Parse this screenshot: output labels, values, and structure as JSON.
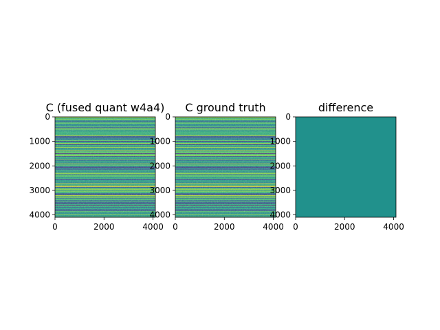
{
  "chart_data": [
    {
      "type": "heatmap",
      "title": "C (fused quant w4a4)",
      "xlim": [
        0,
        4096
      ],
      "ylim": [
        4096,
        0
      ],
      "x_ticks": [
        0,
        2000,
        4000
      ],
      "x_tick_labels": [
        "0",
        "2000",
        "4000"
      ],
      "y_ticks": [
        0,
        1000,
        2000,
        3000,
        4000
      ],
      "y_tick_labels": [
        "0",
        "1000",
        "2000",
        "3000",
        "4000"
      ],
      "content": "horizontal-banded values (row-dominated)",
      "colormap": "viridis"
    },
    {
      "type": "heatmap",
      "title": "C ground truth",
      "xlim": [
        0,
        4096
      ],
      "ylim": [
        4096,
        0
      ],
      "x_ticks": [
        0,
        2000,
        4000
      ],
      "x_tick_labels": [
        "0",
        "2000",
        "4000"
      ],
      "y_ticks": [
        0,
        1000,
        2000,
        3000,
        4000
      ],
      "y_tick_labels": [
        "0",
        "1000",
        "2000",
        "3000",
        "4000"
      ],
      "content": "horizontal-banded values (row-dominated)",
      "colormap": "viridis"
    },
    {
      "type": "heatmap",
      "title": "difference",
      "xlim": [
        0,
        4096
      ],
      "ylim": [
        4096,
        0
      ],
      "x_ticks": [
        0,
        2000,
        4000
      ],
      "x_tick_labels": [
        "0",
        "2000",
        "4000"
      ],
      "y_ticks": [
        0,
        1000,
        2000,
        3000,
        4000
      ],
      "y_tick_labels": [
        "0",
        "1000",
        "2000",
        "3000",
        "4000"
      ],
      "content": "near-uniform (values close to zero)",
      "colormap": "viridis"
    }
  ],
  "colors": {
    "viridis_dark": "#440154",
    "viridis_blue": "#3b528b",
    "viridis_teal": "#21918c",
    "viridis_green": "#5ec962",
    "viridis_yellow": "#fde725",
    "difference_fill": "#21918c"
  }
}
